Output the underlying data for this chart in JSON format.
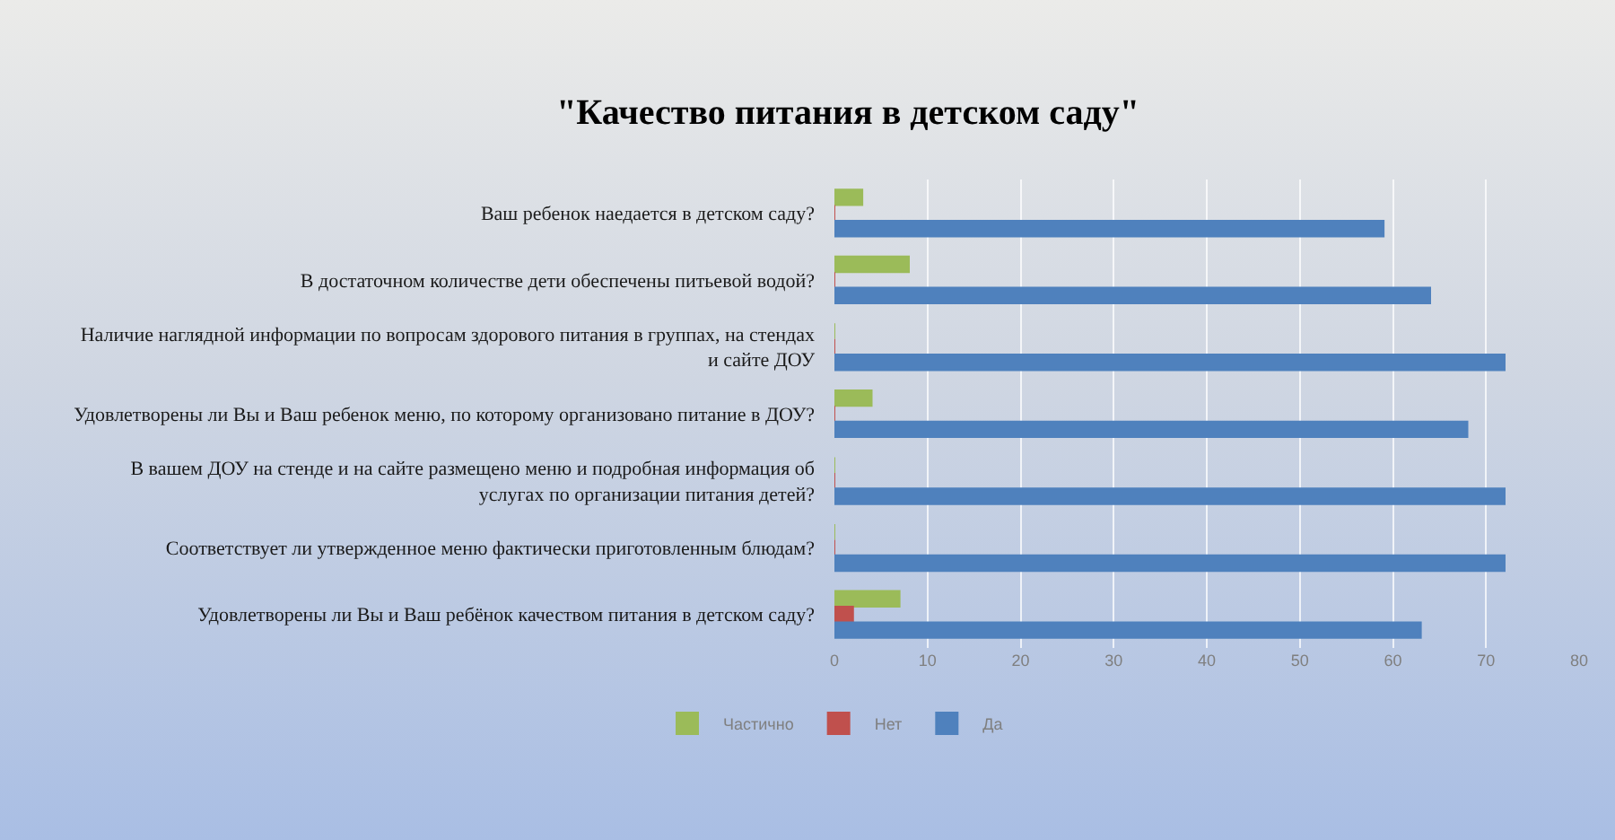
{
  "chart_data": {
    "type": "bar",
    "orientation": "horizontal",
    "title": "\"Качество питания в детском саду\"",
    "categories": [
      "Ваш ребенок наедается в детском саду?",
      "В достаточном количестве дети обеспечены питьевой водой?",
      "Наличие наглядной информации по вопросам здорового питания в группах, на стендах и сайте ДОУ",
      "Удовлетворены ли Вы и Ваш ребенок меню, по которому организовано питание в ДОУ?",
      "В вашем ДОУ на стенде и на сайте размещено меню и подробная информация об услугах по организации питания детей?",
      "Соответствует ли утвержденное меню фактически приготовленным блюдам?",
      "Удовлетворены ли Вы и Ваш ребёнок качеством питания в детском саду?"
    ],
    "series": [
      {
        "name": "Частично",
        "color": "#9bbb59",
        "values": [
          3,
          8,
          0,
          4,
          0,
          0,
          7
        ]
      },
      {
        "name": "Нет",
        "color": "#c0504d",
        "values": [
          0,
          0,
          0,
          0,
          0,
          0,
          2
        ]
      },
      {
        "name": "Да",
        "color": "#4f81bd",
        "values": [
          59,
          64,
          72,
          68,
          72,
          72,
          63
        ]
      }
    ],
    "xlim": [
      0,
      80
    ],
    "xticks": [
      0,
      10,
      20,
      30,
      40,
      50,
      60,
      70,
      80
    ],
    "grid": "x",
    "legend": "bottom"
  }
}
